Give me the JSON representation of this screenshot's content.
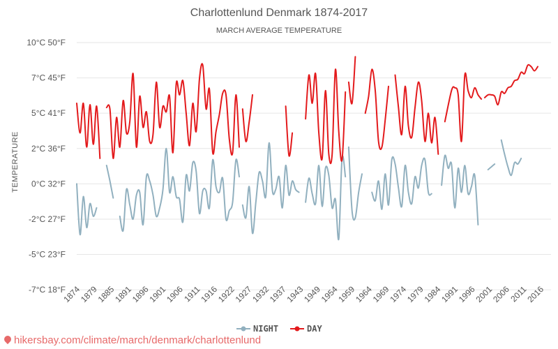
{
  "chart_data": {
    "type": "line",
    "title": "Charlottenlund Denmark 1874-2017",
    "subtitle": "MARCH AVERAGE TEMPERATURE",
    "ylabel": "TEMPERATURE",
    "xlabel": "",
    "ylim": [
      -7,
      10
    ],
    "xlim": [
      1874,
      2017
    ],
    "grid": true,
    "legend_position": "bottom-center",
    "y_ticks": [
      {
        "value": 10,
        "label": "10°C 50°F"
      },
      {
        "value": 7.5,
        "label": "7°C 45°F"
      },
      {
        "value": 5,
        "label": "5°C 41°F"
      },
      {
        "value": 2.5,
        "label": "2°C 36°F"
      },
      {
        "value": 0,
        "label": "0°C 32°F"
      },
      {
        "value": -2.5,
        "label": "-2°C 27°F"
      },
      {
        "value": -5,
        "label": "-5°C 23°F"
      },
      {
        "value": -7.5,
        "label": "-7°C 18°F"
      }
    ],
    "x_ticks": [
      "1874",
      "1879",
      "1885",
      "1891",
      "1896",
      "1901",
      "1906",
      "1911",
      "1916",
      "1922",
      "1927",
      "1932",
      "1937",
      "1943",
      "1949",
      "1954",
      "1959",
      "1964",
      "1969",
      "1974",
      "1979",
      "1984",
      "1991",
      "1996",
      "2001",
      "2006",
      "2011",
      "2016"
    ],
    "series": [
      {
        "name": "DAY",
        "color": "#e31a1c",
        "segments": [
          [
            [
              1874,
              5.7
            ],
            [
              1875,
              3.6
            ],
            [
              1876,
              5.7
            ],
            [
              1877,
              2.6
            ],
            [
              1878,
              5.6
            ],
            [
              1879,
              2.8
            ],
            [
              1880,
              5.5
            ],
            [
              1881,
              1.8
            ]
          ],
          [
            [
              1883,
              5.4
            ],
            [
              1884,
              5.3
            ],
            [
              1885,
              1.8
            ],
            [
              1886,
              4.7
            ],
            [
              1887,
              2.6
            ],
            [
              1888,
              5.9
            ],
            [
              1889,
              3.6
            ],
            [
              1890,
              4.4
            ],
            [
              1891,
              7.8
            ],
            [
              1892,
              2.6
            ],
            [
              1893,
              6.2
            ],
            [
              1894,
              4.0
            ],
            [
              1895,
              5.1
            ],
            [
              1896,
              3.0
            ],
            [
              1897,
              3.5
            ],
            [
              1898,
              7.2
            ],
            [
              1899,
              4.0
            ],
            [
              1900,
              5.5
            ],
            [
              1901,
              5.1
            ],
            [
              1902,
              6.2
            ],
            [
              1903,
              2.2
            ],
            [
              1904,
              7.1
            ],
            [
              1905,
              6.3
            ],
            [
              1906,
              7.3
            ],
            [
              1907,
              5.0
            ],
            [
              1908,
              2.7
            ],
            [
              1909,
              5.7
            ],
            [
              1910,
              3.7
            ],
            [
              1911,
              7.4
            ],
            [
              1912,
              8.4
            ],
            [
              1913,
              5.3
            ],
            [
              1914,
              6.7
            ],
            [
              1915,
              2.2
            ],
            [
              1916,
              3.7
            ],
            [
              1917,
              4.9
            ],
            [
              1918,
              6.4
            ],
            [
              1919,
              6.3
            ],
            [
              1920,
              3.2
            ],
            [
              1921,
              2.2
            ],
            [
              1922,
              6.3
            ],
            [
              1923,
              2.6
            ]
          ],
          [
            [
              1924,
              5.3
            ],
            [
              1925,
              3.0
            ],
            [
              1926,
              4.4
            ],
            [
              1927,
              6.3
            ]
          ],
          [
            [
              1937,
              5.5
            ],
            [
              1938,
              2.0
            ],
            [
              1939,
              3.6
            ]
          ],
          [
            [
              1943,
              4.6
            ],
            [
              1944,
              7.7
            ],
            [
              1945,
              5.7
            ],
            [
              1946,
              7.8
            ],
            [
              1947,
              3.6
            ],
            [
              1948,
              1.8
            ],
            [
              1949,
              6.6
            ],
            [
              1950,
              2.1
            ],
            [
              1951,
              2.1
            ],
            [
              1952,
              8.1
            ],
            [
              1953,
              3.7
            ],
            [
              1954,
              1.7
            ],
            [
              1955,
              6.5
            ]
          ],
          [
            [
              1956,
              7.2
            ],
            [
              1957,
              5.7
            ],
            [
              1958,
              9.0
            ]
          ],
          [
            [
              1961,
              5.0
            ],
            [
              1962,
              6.2
            ],
            [
              1963,
              8.1
            ],
            [
              1964,
              6.6
            ],
            [
              1965,
              3.0
            ],
            [
              1966,
              2.6
            ],
            [
              1967,
              4.5
            ],
            [
              1968,
              6.9
            ]
          ],
          [
            [
              1970,
              7.7
            ],
            [
              1971,
              5.4
            ],
            [
              1972,
              3.5
            ],
            [
              1973,
              6.9
            ],
            [
              1974,
              4.1
            ],
            [
              1975,
              3.3
            ],
            [
              1976,
              5.4
            ],
            [
              1977,
              7.2
            ],
            [
              1978,
              5.9
            ],
            [
              1979,
              3.0
            ],
            [
              1980,
              5.0
            ],
            [
              1981,
              2.9
            ],
            [
              1982,
              4.7
            ],
            [
              1983,
              2.1
            ]
          ],
          [
            [
              1985,
              4.4
            ],
            [
              1987,
              6.6
            ],
            [
              1988,
              6.8
            ],
            [
              1989,
              6.3
            ],
            [
              1990,
              3.0
            ],
            [
              1991,
              7.7
            ],
            [
              1992,
              6.6
            ],
            [
              1993,
              6.1
            ],
            [
              1994,
              6.8
            ],
            [
              1995,
              6.3
            ],
            [
              1996,
              6.0
            ]
          ],
          [
            [
              1997,
              6.1
            ],
            [
              1998,
              6.3
            ],
            [
              1999,
              6.3
            ],
            [
              2000,
              6.2
            ],
            [
              2001,
              5.6
            ],
            [
              2002,
              6.5
            ],
            [
              2003,
              6.4
            ],
            [
              2004,
              6.8
            ],
            [
              2005,
              6.9
            ],
            [
              2006,
              7.3
            ],
            [
              2007,
              7.4
            ],
            [
              2008,
              7.9
            ],
            [
              2009,
              7.8
            ],
            [
              2010,
              8.4
            ],
            [
              2011,
              8.3
            ],
            [
              2012,
              8.0
            ],
            [
              2013,
              8.3
            ]
          ]
        ]
      },
      {
        "name": "NIGHT",
        "color": "#91b0bf",
        "segments": [
          [
            [
              1874,
              0.0
            ],
            [
              1875,
              -3.6
            ],
            [
              1876,
              -0.9
            ],
            [
              1877,
              -3.1
            ],
            [
              1878,
              -1.4
            ],
            [
              1879,
              -2.3
            ],
            [
              1880,
              -1.7
            ]
          ],
          [
            [
              1883,
              1.3
            ],
            [
              1884,
              0.2
            ],
            [
              1885,
              -1.0
            ]
          ],
          [
            [
              1887,
              -2.3
            ],
            [
              1888,
              -3.3
            ],
            [
              1889,
              -0.4
            ],
            [
              1890,
              -1.5
            ],
            [
              1891,
              -2.5
            ],
            [
              1892,
              -0.8
            ],
            [
              1893,
              -0.6
            ],
            [
              1894,
              -2.9
            ],
            [
              1895,
              0.5
            ],
            [
              1896,
              0.2
            ],
            [
              1897,
              -0.8
            ],
            [
              1898,
              -2.3
            ],
            [
              1899,
              -1.7
            ],
            [
              1900,
              -0.4
            ],
            [
              1901,
              2.5
            ],
            [
              1902,
              -0.6
            ],
            [
              1903,
              0.5
            ],
            [
              1904,
              -0.9
            ],
            [
              1905,
              -1.1
            ],
            [
              1906,
              -2.7
            ],
            [
              1907,
              0.6
            ],
            [
              1908,
              -0.5
            ],
            [
              1909,
              1.5
            ],
            [
              1910,
              0.9
            ],
            [
              1911,
              -2.1
            ],
            [
              1912,
              -0.5
            ],
            [
              1913,
              -0.5
            ],
            [
              1914,
              -1.7
            ],
            [
              1915,
              1.7
            ],
            [
              1916,
              -0.2
            ],
            [
              1917,
              -0.6
            ],
            [
              1918,
              0.4
            ],
            [
              1919,
              -2.5
            ],
            [
              1920,
              -1.9
            ],
            [
              1921,
              -1.3
            ],
            [
              1922,
              1.7
            ],
            [
              1923,
              0.5
            ]
          ],
          [
            [
              1924,
              -1.5
            ],
            [
              1925,
              -2.4
            ],
            [
              1926,
              -0.2
            ],
            [
              1927,
              -3.5
            ],
            [
              1928,
              -1.3
            ],
            [
              1929,
              0.8
            ],
            [
              1930,
              0.2
            ],
            [
              1931,
              -0.9
            ],
            [
              1932,
              2.9
            ],
            [
              1933,
              -0.5
            ],
            [
              1934,
              -0.4
            ],
            [
              1935,
              0.5
            ],
            [
              1936,
              -1.7
            ],
            [
              1937,
              1.3
            ],
            [
              1938,
              -0.8
            ],
            [
              1939,
              0.2
            ],
            [
              1940,
              -0.4
            ],
            [
              1941,
              -0.6
            ]
          ],
          [
            [
              1943,
              -1.3
            ],
            [
              1944,
              0.4
            ],
            [
              1945,
              -0.7
            ],
            [
              1946,
              -1.4
            ],
            [
              1947,
              1.3
            ],
            [
              1948,
              -1.6
            ],
            [
              1949,
              1.1
            ],
            [
              1950,
              0.6
            ],
            [
              1951,
              -1.7
            ],
            [
              1952,
              -1.1
            ],
            [
              1953,
              -3.9
            ],
            [
              1954,
              1.8
            ],
            [
              1955,
              0.5
            ]
          ],
          [
            [
              1956,
              2.6
            ],
            [
              1957,
              -1.9
            ],
            [
              1958,
              -2.4
            ],
            [
              1959,
              -0.6
            ],
            [
              1960,
              0.7
            ]
          ],
          [
            [
              1963,
              -0.6
            ],
            [
              1964,
              -1.2
            ],
            [
              1965,
              0.2
            ],
            [
              1966,
              -1.8
            ],
            [
              1967,
              0.7
            ],
            [
              1968,
              -1.5
            ],
            [
              1969,
              1.7
            ],
            [
              1970,
              1.4
            ],
            [
              1971,
              -0.3
            ],
            [
              1972,
              -1.6
            ],
            [
              1973,
              1.3
            ],
            [
              1974,
              -0.6
            ],
            [
              1975,
              -1.4
            ],
            [
              1976,
              0.5
            ],
            [
              1977,
              -0.3
            ],
            [
              1978,
              1.3
            ],
            [
              1979,
              1.7
            ],
            [
              1980,
              -0.6
            ],
            [
              1981,
              -0.7
            ]
          ],
          [
            [
              1984,
              -0.1
            ],
            [
              1985,
              2.0
            ],
            [
              1986,
              1.1
            ],
            [
              1987,
              1.4
            ],
            [
              1988,
              -1.7
            ],
            [
              1989,
              1.1
            ],
            [
              1990,
              -0.6
            ],
            [
              1991,
              1.3
            ],
            [
              1992,
              -0.7
            ],
            [
              1993,
              -0.2
            ],
            [
              1994,
              0.6
            ],
            [
              1995,
              -2.9
            ]
          ],
          [
            [
              1998,
              1.0
            ],
            [
              1999,
              1.2
            ],
            [
              2000,
              1.4
            ]
          ],
          [
            [
              2002,
              3.1
            ],
            [
              2003,
              2.1
            ],
            [
              2004,
              1.2
            ],
            [
              2005,
              0.6
            ],
            [
              2006,
              1.5
            ],
            [
              2007,
              1.4
            ],
            [
              2008,
              1.8
            ]
          ]
        ]
      }
    ]
  },
  "footer": {
    "url": "hikersbay.com/climate/march/denmark/charlottenlund"
  }
}
